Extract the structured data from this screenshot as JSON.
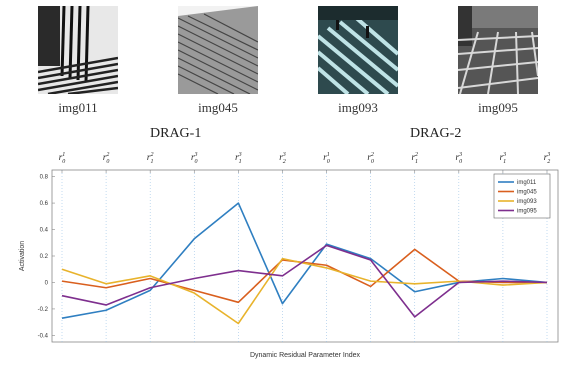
{
  "images": [
    {
      "caption": "img011",
      "icon": "building-facade-photo"
    },
    {
      "caption": "img045",
      "icon": "building-lines-photo"
    },
    {
      "caption": "img093",
      "icon": "crosswalk-people-photo"
    },
    {
      "caption": "img095",
      "icon": "tiled-plaza-photo"
    }
  ],
  "groups": [
    "DRAG-1",
    "DRAG-2"
  ],
  "chart_data": {
    "type": "line",
    "categories": [
      "r0^1",
      "r0^2",
      "r1^2",
      "r0^3",
      "r1^3",
      "r2^3",
      "r0^1",
      "r0^2",
      "r1^2",
      "r0^3",
      "r1^3",
      "r2^3"
    ],
    "category_labels": [
      {
        "base": "r",
        "sub": "0",
        "sup": "1"
      },
      {
        "base": "r",
        "sub": "0",
        "sup": "2"
      },
      {
        "base": "r",
        "sub": "1",
        "sup": "2"
      },
      {
        "base": "r",
        "sub": "0",
        "sup": "3"
      },
      {
        "base": "r",
        "sub": "1",
        "sup": "3"
      },
      {
        "base": "r",
        "sub": "2",
        "sup": "3"
      },
      {
        "base": "r",
        "sub": "0",
        "sup": "1"
      },
      {
        "base": "r",
        "sub": "0",
        "sup": "2"
      },
      {
        "base": "r",
        "sub": "1",
        "sup": "2"
      },
      {
        "base": "r",
        "sub": "0",
        "sup": "3"
      },
      {
        "base": "r",
        "sub": "1",
        "sup": "3"
      },
      {
        "base": "r",
        "sub": "2",
        "sup": "3"
      }
    ],
    "xlabel": "Dynamic Residual Parameter Index",
    "ylabel": "Activation",
    "ylim": [
      -0.45,
      0.85
    ],
    "yticks": [
      "0.8",
      "0.6",
      "0.4",
      "0.2",
      "0",
      "-0.2",
      "-0.4"
    ],
    "ytick_values": [
      0.8,
      0.6,
      0.4,
      0.2,
      0,
      -0.2,
      -0.4
    ],
    "grid": "vertical dotted",
    "legend_position": "top-right",
    "series": [
      {
        "name": "img011",
        "color": "#2f7fc1",
        "values": [
          -0.27,
          -0.21,
          -0.06,
          0.33,
          0.6,
          -0.16,
          0.29,
          0.18,
          -0.07,
          0.0,
          0.03,
          0.0
        ]
      },
      {
        "name": "img045",
        "color": "#d95f1e",
        "values": [
          0.01,
          -0.04,
          0.03,
          -0.06,
          -0.15,
          0.17,
          0.13,
          -0.03,
          0.25,
          0.01,
          0.0,
          0.0
        ]
      },
      {
        "name": "img093",
        "color": "#e8b32c",
        "values": [
          0.1,
          -0.01,
          0.05,
          -0.08,
          -0.31,
          0.18,
          0.11,
          0.01,
          -0.01,
          0.01,
          -0.02,
          0.0
        ]
      },
      {
        "name": "img095",
        "color": "#7e2f8e",
        "values": [
          -0.1,
          -0.17,
          -0.04,
          0.03,
          0.09,
          0.05,
          0.28,
          0.17,
          -0.26,
          0.0,
          0.01,
          0.0
        ]
      }
    ]
  }
}
